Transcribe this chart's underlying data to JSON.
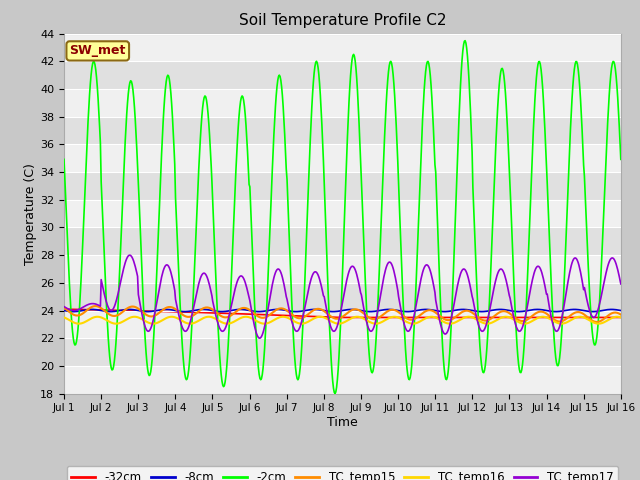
{
  "title": "Soil Temperature Profile C2",
  "xlabel": "Time",
  "ylabel": "Temperature (C)",
  "ylim": [
    18,
    44
  ],
  "xlim": [
    0,
    15
  ],
  "yticks": [
    18,
    20,
    22,
    24,
    26,
    28,
    30,
    32,
    34,
    36,
    38,
    40,
    42,
    44
  ],
  "xtick_labels": [
    "Jul 1",
    "Jul 2",
    "Jul 3",
    "Jul 4",
    "Jul 5",
    "Jul 6",
    "Jul 7",
    "Jul 8",
    "Jul 9",
    "Jul 10",
    "Jul 11",
    "Jul 12",
    "Jul 13",
    "Jul 14",
    "Jul 15",
    "Jul 16"
  ],
  "fig_bg_color": "#c8c8c8",
  "plot_bg_color": "#e8e8e8",
  "legend_label_box": "SW_met",
  "legend_box_color": "#ffff99",
  "legend_box_border": "#8b6914",
  "legend_text_color": "#8b0000",
  "series": {
    "-32cm": {
      "color": "#ff0000",
      "lw": 1.2
    },
    "-8cm": {
      "color": "#0000cd",
      "lw": 1.2
    },
    "-2cm": {
      "color": "#00ff00",
      "lw": 1.2
    },
    "TC_temp15": {
      "color": "#ff8c00",
      "lw": 1.5
    },
    "TC_temp16": {
      "color": "#ffd700",
      "lw": 1.5
    },
    "TC_temp17": {
      "color": "#9400d3",
      "lw": 1.2
    }
  }
}
